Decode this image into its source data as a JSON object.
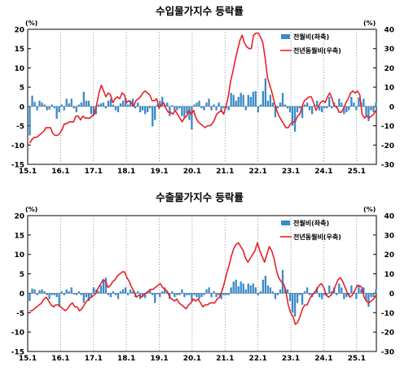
{
  "chart_data": [
    {
      "type": "bar+line",
      "title": "수입물가지수 등락률",
      "left_unit": "(%)",
      "right_unit": "(%)",
      "left_ylim": [
        -15,
        20
      ],
      "right_ylim": [
        -30,
        40
      ],
      "left_ticks": [
        "20",
        "15",
        "10",
        "5",
        "0",
        "-5",
        "-10",
        "-15"
      ],
      "right_ticks": [
        "40",
        "30",
        "20",
        "10",
        "0",
        "-10",
        "-20",
        "-30"
      ],
      "x_ticks": [
        "15.1",
        "16.1",
        "17.1",
        "18.1",
        "19.1",
        "20.1",
        "21.1",
        "22.1",
        "23.1",
        "24.1",
        "25.1"
      ],
      "legend": [
        {
          "label": "전월비(좌축)",
          "kind": "bar",
          "color": "#3a8ac8"
        },
        {
          "label": "전년동월비(우축)",
          "kind": "line",
          "color": "#e8202a"
        }
      ],
      "series": [
        {
          "name": "전월비(좌축)",
          "axis": "left",
          "kind": "bar",
          "color": "#3a8ac8",
          "values": [
            -7.5,
            2.8,
            1.2,
            -1.0,
            1.5,
            1.0,
            0.5,
            -1.0,
            -0.8,
            0.5,
            -0.5,
            -3.2,
            -1.5,
            0.5,
            -1.0,
            2.0,
            0.8,
            2.0,
            -0.5,
            -1.5,
            0.5,
            1.0,
            3.8,
            1.5,
            1.5,
            -2.0,
            -2.5,
            -2.0,
            0.5,
            0.8,
            1.0,
            -0.5,
            1.5,
            2.0,
            0.5,
            -1.0,
            -1.5,
            0.8,
            1.5,
            2.0,
            0.5,
            1.5,
            2.0,
            -0.5,
            1.0,
            -1.5,
            -1.0,
            -2.0,
            -1.5,
            -0.5,
            -5.2,
            -3.5,
            0.5,
            1.5,
            2.5,
            0.5,
            1.0,
            -2.5,
            0.3,
            -1.0,
            -1.0,
            -0.5,
            -2.5,
            -3.0,
            -1.8,
            -3.5,
            -6.0,
            0.5,
            1.0,
            1.5,
            -0.5,
            -1.0,
            1.0,
            2.0,
            -1.0,
            0.5,
            -1.0,
            1.0,
            -1.5,
            -0.5,
            -0.5,
            -1.0,
            3.5,
            3.0,
            1.5,
            2.5,
            3.5,
            3.0,
            -1.0,
            3.0,
            2.5,
            3.8,
            4.0,
            -1.5,
            0.5,
            4.0,
            7.3,
            1.5,
            3.0,
            1.0,
            -2.8,
            -0.5,
            1.0,
            3.5,
            0.5,
            -0.5,
            -1.5,
            -5.0,
            -6.5,
            -1.5,
            -0.5,
            -3.0,
            0.5,
            1.0,
            -1.0,
            -2.0,
            0.5,
            1.5,
            -1.0,
            -1.5,
            -0.5,
            -0.5,
            2.5,
            -0.5,
            1.0,
            -0.5,
            2.0,
            1.0,
            -2.0,
            -1.5,
            -1.0,
            2.5,
            1.0,
            -1.0,
            2.3,
            1.0,
            2.0,
            -2.5,
            -3.8,
            -1.0,
            -1.5,
            1.0
          ]
        },
        {
          "name": "전년동월비(우축)",
          "axis": "right",
          "kind": "line",
          "color": "#e8202a",
          "values": [
            -19,
            -17,
            -16,
            -16,
            -15,
            -14,
            -13,
            -11,
            -11,
            -11,
            -14,
            -15,
            -15,
            -14,
            -12,
            -9,
            -9,
            -8,
            -8,
            -8,
            -5,
            -5,
            -7,
            -5,
            -6,
            -6,
            -6,
            -5,
            -4,
            1,
            7,
            11,
            8,
            5,
            7,
            6,
            2,
            4,
            5,
            4,
            7,
            6,
            2,
            3,
            2,
            0,
            3,
            4,
            5,
            7,
            8,
            7,
            6,
            3,
            3,
            4,
            -1,
            1,
            2,
            -1,
            -3,
            -3,
            -4,
            -2,
            -4,
            -6,
            -8,
            -6,
            -5,
            -2,
            -4,
            -2,
            -6,
            -8,
            -9,
            -10,
            -11,
            -10,
            -10,
            -9,
            -7,
            -4,
            -3,
            -2,
            -4,
            0,
            5,
            13,
            18,
            24,
            29,
            34,
            37,
            33,
            31,
            30,
            30,
            37,
            38,
            38,
            36,
            33,
            25,
            15,
            11,
            7,
            2,
            -2,
            -5,
            -7,
            -9,
            -11,
            -11,
            -9,
            -8,
            -8,
            -5,
            -4,
            0,
            3,
            4,
            5,
            5,
            2,
            -2,
            0,
            2,
            3,
            2,
            5,
            7,
            4,
            0,
            0,
            -3,
            -3,
            -1,
            2,
            4,
            7,
            8,
            7,
            8,
            6,
            -4,
            -6,
            -5,
            -6,
            -5,
            -4,
            -2
          ]
        }
      ]
    },
    {
      "type": "bar+line",
      "title": "수출물가지수 등락률",
      "left_unit": "(%)",
      "right_unit": "(%)",
      "left_ylim": [
        -15,
        20
      ],
      "right_ylim": [
        -30,
        40
      ],
      "left_ticks": [
        "20",
        "15",
        "10",
        "5",
        "0",
        "-5",
        "-10",
        "-15"
      ],
      "right_ticks": [
        "40",
        "30",
        "20",
        "10",
        "0",
        "-10",
        "-20",
        "-30"
      ],
      "x_ticks": [
        "15.1",
        "16.1",
        "17.1",
        "18.1",
        "19.1",
        "20.1",
        "21.1",
        "22.1",
        "23.1",
        "24.1",
        "25.1"
      ],
      "legend": [
        {
          "label": "전월비(좌축)",
          "kind": "bar",
          "color": "#3a8ac8"
        },
        {
          "label": "전년동월비(우축)",
          "kind": "line",
          "color": "#e8202a"
        }
      ],
      "series": [
        {
          "name": "전월비(좌축)",
          "axis": "left",
          "kind": "bar",
          "color": "#3a8ac8",
          "values": [
            -2.0,
            1.2,
            1.0,
            -0.5,
            0.8,
            1.0,
            0.5,
            -0.5,
            -1.5,
            -0.5,
            -0.5,
            -1.0,
            -3.5,
            0.5,
            -0.5,
            1.0,
            0.5,
            1.5,
            -0.3,
            -0.5,
            0.5,
            -0.5,
            -2.5,
            -1.0,
            -2.0,
            -1.0,
            1.5,
            1.0,
            0.5,
            2.0,
            3.5,
            4.0,
            -0.5,
            -1.0,
            0.5,
            -0.5,
            -1.5,
            0.5,
            1.0,
            1.5,
            -0.5,
            1.0,
            0.5,
            -1.0,
            0.5,
            -1.5,
            -1.0,
            -1.2,
            0.5,
            1.0,
            -0.5,
            -2.5,
            -0.3,
            -1.0,
            0.5,
            1.5,
            0.5,
            -1.5,
            0.5,
            -1.0,
            -0.5,
            -0.5,
            1.0,
            -1.0,
            -0.5,
            -0.5,
            -2.0,
            -0.5,
            -1.0,
            -1.5,
            -1.0,
            -0.5,
            1.0,
            1.5,
            -1.0,
            0.5,
            -1.0,
            -0.5,
            -1.5,
            -0.5,
            -0.5,
            -0.5,
            1.5,
            3.0,
            3.5,
            1.8,
            3.0,
            2.5,
            1.0,
            2.5,
            2.0,
            2.5,
            1.5,
            -0.5,
            0.5,
            3.5,
            4.5,
            2.0,
            1.5,
            0.5,
            -1.5,
            -0.5,
            1.0,
            6.0,
            1.5,
            1.0,
            -2.0,
            -5.0,
            -6.0,
            -2.5,
            -0.5,
            -3.0,
            0.5,
            1.5,
            -0.5,
            -1.0,
            0.5,
            1.5,
            -1.0,
            -1.5,
            -0.5,
            -0.5,
            2.0,
            0.5,
            1.5,
            -0.5,
            2.5,
            1.5,
            -1.5,
            -1.0,
            -0.5,
            2.0,
            0.5,
            -1.5,
            2.0,
            1.0,
            1.5,
            -2.0,
            -3.5,
            -1.0,
            -1.0,
            1.0
          ]
        },
        {
          "name": "전년동월비(우축)",
          "axis": "right",
          "kind": "line",
          "color": "#e8202a",
          "values": [
            -9,
            -9,
            -8,
            -7,
            -6,
            -5,
            -3,
            -2,
            -4,
            -6,
            -7,
            -6,
            -6,
            -7,
            -8,
            -9,
            -8,
            -6,
            -5,
            -7,
            -7,
            -9,
            -8,
            -6,
            -4,
            -3,
            -2,
            -1,
            0,
            3,
            5,
            7,
            6,
            3,
            4,
            6,
            7,
            9,
            10,
            11,
            11,
            8,
            6,
            3,
            1,
            -2,
            -1,
            -2,
            -1,
            0,
            1,
            2,
            2,
            3,
            4,
            5,
            3,
            2,
            1,
            -2,
            -3,
            -4,
            -3,
            -5,
            -6,
            -7,
            -8,
            -6,
            -5,
            -3,
            -4,
            -3,
            -5,
            -7,
            -6,
            -6,
            -5,
            -5,
            -5,
            -3,
            -2,
            1,
            5,
            10,
            14,
            19,
            23,
            25,
            26,
            24,
            22,
            18,
            16,
            18,
            20,
            22,
            26,
            22,
            19,
            16,
            20,
            24,
            22,
            18,
            12,
            8,
            6,
            5,
            1,
            -6,
            -10,
            -12,
            -16,
            -15,
            -12,
            -8,
            -6,
            -6,
            -3,
            -1,
            0,
            2,
            4,
            5,
            3,
            -1,
            -2,
            -1,
            1,
            4,
            7,
            8,
            6,
            3,
            0,
            -2,
            -1,
            1,
            4,
            4,
            3,
            -2,
            -4,
            -5,
            -4,
            -3,
            -1
          ]
        }
      ]
    }
  ]
}
